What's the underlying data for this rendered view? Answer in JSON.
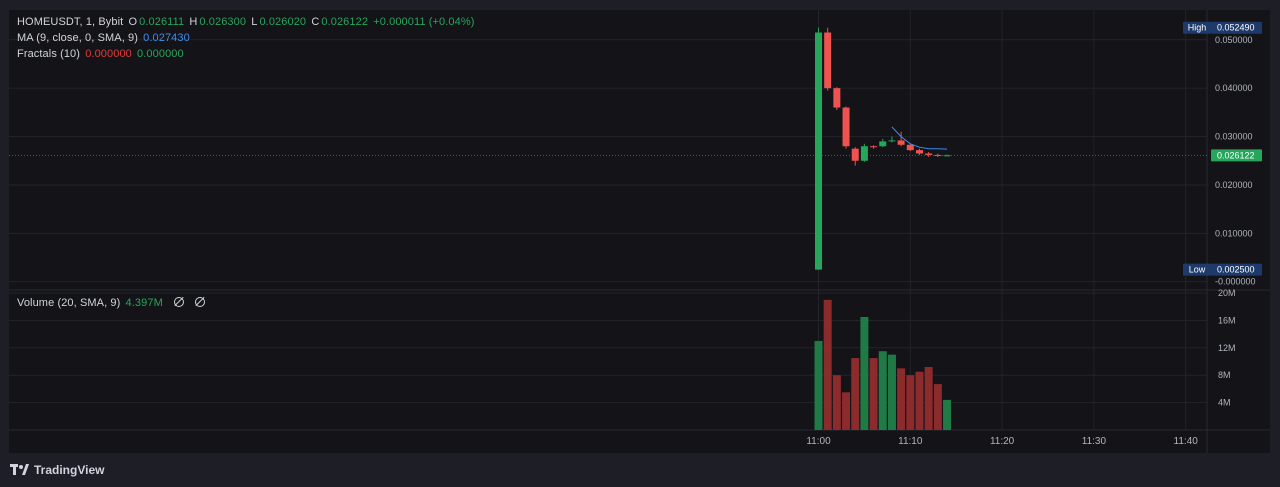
{
  "legend": {
    "symbol": "HOMEUSDT, 1, Bybit",
    "o_key": "O",
    "o_val": "0.026111",
    "h_key": "H",
    "h_val": "0.026300",
    "l_key": "L",
    "l_val": "0.026020",
    "c_key": "C",
    "c_val": "0.026122",
    "change": "+0.000011 (+0.04%)",
    "ma_label": "MA (9, close, 0, SMA, 9)",
    "ma_val": "0.027430",
    "fractals_label": "Fractals (10)",
    "fractals_up": "0.000000",
    "fractals_down": "0.000000",
    "volume_label": "Volume (20, SMA, 9)",
    "volume_val": "4.397M"
  },
  "branding": {
    "name": "TradingView"
  },
  "colors": {
    "up": "#26a65b",
    "down": "#ef5350",
    "vol_up": "#1f7a45",
    "vol_down": "#8b2b2b",
    "ma": "#3f8cf0",
    "grid": "#23242b",
    "axis_text": "#b2b5be",
    "last_price_bg": "#26a65b",
    "marker_bg": "#1e3a6b"
  },
  "chart_data": {
    "type": "candlestick",
    "symbol": "HOMEUSDT",
    "interval": "1",
    "x_ticks": [
      "11:00",
      "11:10",
      "11:20",
      "11:30",
      "11:40"
    ],
    "y_ticks": [
      "-0.000000",
      "0.010000",
      "0.020000",
      "0.030000",
      "0.040000",
      "0.050000"
    ],
    "y_range": [
      -0.0015,
      0.0545
    ],
    "price_labels": {
      "high_label": "High",
      "high_value": "0.052490",
      "low_label": "Low",
      "low_value": "0.002500",
      "last_value": "0.026122"
    },
    "candles": [
      {
        "t": "11:00",
        "o": 0.0025,
        "h": 0.0525,
        "l": 0.0025,
        "c": 0.0515
      },
      {
        "t": "11:01",
        "o": 0.0515,
        "h": 0.0525,
        "l": 0.0395,
        "c": 0.04
      },
      {
        "t": "11:02",
        "o": 0.04,
        "h": 0.0402,
        "l": 0.0355,
        "c": 0.036
      },
      {
        "t": "11:03",
        "o": 0.036,
        "h": 0.0362,
        "l": 0.0275,
        "c": 0.028
      },
      {
        "t": "11:04",
        "o": 0.0275,
        "h": 0.0278,
        "l": 0.024,
        "c": 0.025
      },
      {
        "t": "11:05",
        "o": 0.025,
        "h": 0.0285,
        "l": 0.0248,
        "c": 0.028
      },
      {
        "t": "11:06",
        "o": 0.028,
        "h": 0.0282,
        "l": 0.0275,
        "c": 0.0278
      },
      {
        "t": "11:07",
        "o": 0.028,
        "h": 0.0295,
        "l": 0.0278,
        "c": 0.029
      },
      {
        "t": "11:08",
        "o": 0.029,
        "h": 0.03,
        "l": 0.0288,
        "c": 0.0292
      },
      {
        "t": "11:09",
        "o": 0.0292,
        "h": 0.031,
        "l": 0.028,
        "c": 0.0283
      },
      {
        "t": "11:10",
        "o": 0.0283,
        "h": 0.0285,
        "l": 0.027,
        "c": 0.0272
      },
      {
        "t": "11:11",
        "o": 0.0272,
        "h": 0.0275,
        "l": 0.0262,
        "c": 0.0265
      },
      {
        "t": "11:12",
        "o": 0.0265,
        "h": 0.0268,
        "l": 0.0258,
        "c": 0.0262
      },
      {
        "t": "11:13",
        "o": 0.0262,
        "h": 0.0265,
        "l": 0.0258,
        "c": 0.0261
      },
      {
        "t": "11:14",
        "o": 0.026111,
        "h": 0.0263,
        "l": 0.02602,
        "c": 0.026122
      }
    ],
    "ma": [
      null,
      null,
      null,
      null,
      null,
      null,
      null,
      null,
      0.032,
      0.03,
      0.0285,
      0.0278,
      0.0275,
      0.0275,
      0.0274
    ],
    "volume": {
      "y_ticks": [
        "4M",
        "8M",
        "12M",
        "16M",
        "20M"
      ],
      "y_range": [
        0,
        20
      ],
      "unit": "M",
      "values": [
        13,
        19,
        8,
        5.5,
        10.5,
        16.5,
        10.5,
        11.5,
        11,
        9,
        8,
        8.5,
        9.2,
        6.7,
        4.4
      ]
    }
  }
}
